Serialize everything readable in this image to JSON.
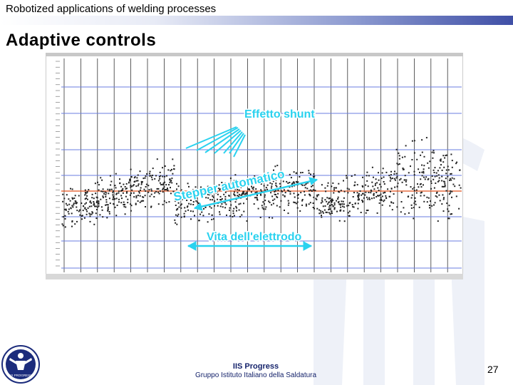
{
  "header": {
    "text": "Robotized applications of welding processes"
  },
  "title": "Adaptive controls",
  "chart": {
    "annotations": {
      "shunt": "Effetto shunt",
      "stepper": "Stepper automatico",
      "life": "Vita dell'elettrodo"
    },
    "colors": {
      "annotation": "#2ad2ef",
      "reference_line": "#e2501c",
      "blue_lines": "#6a7ee0"
    }
  },
  "footer": {
    "line1": "IIS Progress",
    "line2": "Gruppo Istituto Italiano della Saldatura"
  },
  "page_number": "27",
  "logo": {
    "text": "IIS PROGRESS"
  }
}
